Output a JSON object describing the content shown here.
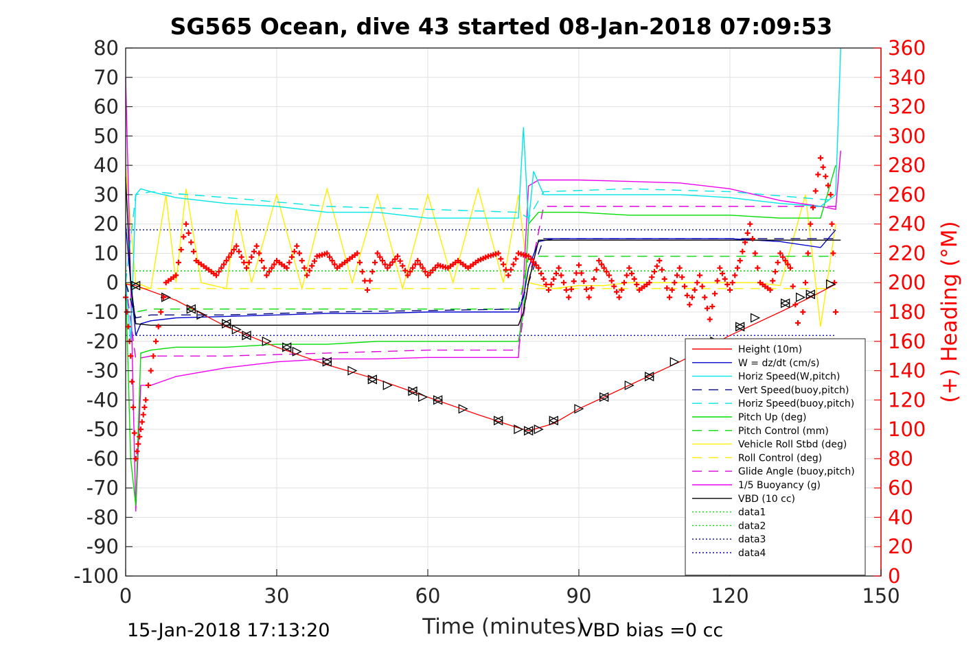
{
  "title": "SG565 Ocean, dive 43 started 08-Jan-2018 07:09:53",
  "footer": {
    "timestamp": "15-Jan-2018 17:13:20",
    "vbd_bias": "VBD bias =0 cc"
  },
  "chart_data": {
    "type": "line",
    "xlabel": "Time (minutes)",
    "ylabel_left": "",
    "ylabel_right": "(+) Heading (°M)",
    "xlim": [
      0,
      150
    ],
    "ylim_left": [
      -100,
      80
    ],
    "ylim_right": [
      0,
      360
    ],
    "xticks": [
      "0",
      "30",
      "60",
      "90",
      "120",
      "150"
    ],
    "yticks_left": [
      "80",
      "70",
      "60",
      "50",
      "40",
      "30",
      "20",
      "10",
      "0",
      "-10",
      "-20",
      "-30",
      "-40",
      "-50",
      "-60",
      "-70",
      "-80",
      "-90",
      "-100"
    ],
    "yticks_right": [
      "360",
      "340",
      "320",
      "300",
      "280",
      "260",
      "240",
      "220",
      "200",
      "180",
      "160",
      "140",
      "120",
      "100",
      "80",
      "60",
      "40",
      "20",
      "0"
    ],
    "grid": true,
    "legend_position": "lower-right",
    "colors": {
      "height": "#ff0000",
      "w": "#0000cd",
      "horiz_w": "#00e5e5",
      "vert_buoy": "#000080",
      "horiz_buoy": "#00e5e5",
      "pitch_up": "#00dd00",
      "pitch_control": "#00dd00",
      "roll": "#ffee00",
      "roll_control": "#ffee00",
      "glide": "#dd00dd",
      "buoyancy": "#ee00ee",
      "vbd": "#000000",
      "heading": "#ff0000"
    },
    "series": [
      {
        "name": "Height (10m)",
        "key": "height",
        "dash": "",
        "x": [
          0,
          2,
          10,
          20,
          30,
          40,
          50,
          60,
          70,
          77,
          80,
          85,
          90,
          95,
          100,
          110,
          120,
          130,
          136,
          141
        ],
        "y": [
          -0.5,
          -1,
          -6,
          -15,
          -22,
          -28,
          -33,
          -39,
          -45,
          -49,
          -50.5,
          -48,
          -43,
          -39,
          -35,
          -27,
          -18,
          -10,
          -5,
          -0.5
        ]
      },
      {
        "name": "W = dz/dt (cm/s)",
        "key": "w",
        "dash": "",
        "x": [
          0,
          1,
          2,
          3,
          5,
          10,
          20,
          30,
          40,
          50,
          60,
          70,
          78,
          79,
          80,
          82,
          85,
          90,
          100,
          110,
          120,
          130,
          138,
          141
        ],
        "y": [
          20,
          0,
          -18,
          -14,
          -13,
          -12,
          -11.5,
          -11,
          -10.5,
          -10.5,
          -10,
          -10,
          -10,
          -5,
          5,
          14,
          15,
          15,
          15,
          15,
          15,
          14,
          12,
          18
        ]
      },
      {
        "name": "Horiz Speed(W,pitch)",
        "key": "horiz_w",
        "dash": "",
        "x": [
          0,
          1,
          2,
          3,
          5,
          10,
          20,
          30,
          40,
          50,
          60,
          70,
          78,
          79,
          80,
          81,
          83,
          90,
          100,
          110,
          120,
          130,
          138,
          141,
          142
        ],
        "y": [
          0,
          -20,
          30,
          32,
          31,
          29,
          27,
          26,
          24,
          24,
          22,
          22,
          22,
          53,
          20,
          38,
          30,
          30,
          30,
          30,
          29,
          27,
          26,
          30,
          80
        ]
      },
      {
        "name": "Vert Speed(buoy,pitch)",
        "key": "vert_buoy",
        "dash": "14,10",
        "x": [
          0,
          2,
          5,
          20,
          40,
          60,
          78,
          80,
          83,
          100,
          120,
          141
        ],
        "y": [
          0,
          -12,
          -11,
          -11,
          -10,
          -9.5,
          -9,
          0,
          15,
          15,
          15,
          15
        ]
      },
      {
        "name": "Horiz Speed(buoy,pitch)",
        "key": "horiz_buoy",
        "dash": "14,10",
        "x": [
          0,
          2,
          5,
          20,
          40,
          60,
          78,
          80,
          83,
          100,
          120,
          141
        ],
        "y": [
          0,
          30,
          31,
          29,
          26,
          25,
          24,
          22,
          31,
          32,
          31,
          28
        ]
      },
      {
        "name": "Pitch Up (deg)",
        "key": "pitch_up",
        "dash": "",
        "x": [
          0,
          1,
          2,
          3,
          5,
          10,
          20,
          30,
          40,
          50,
          60,
          70,
          78,
          79,
          80,
          82,
          90,
          100,
          110,
          120,
          130,
          138,
          141
        ],
        "y": [
          0,
          -60,
          -76,
          -24,
          -23,
          -22,
          -22,
          -21,
          -21,
          -20,
          -20,
          -20,
          -20,
          -10,
          20,
          24,
          24,
          23,
          23,
          23,
          22,
          22,
          40
        ]
      },
      {
        "name": "Pitch Control (mm)",
        "key": "pitch_control",
        "dash": "14,10",
        "x": [
          0,
          2,
          5,
          20,
          40,
          60,
          78,
          80,
          83,
          100,
          120,
          141
        ],
        "y": [
          0,
          -10,
          -9,
          -9,
          -9,
          -9,
          -9,
          9,
          9,
          9,
          9,
          9
        ]
      },
      {
        "name": "Vehicle Roll Stbd (deg)",
        "key": "roll",
        "dash": "",
        "x": [
          0,
          2,
          5,
          8,
          10,
          12,
          15,
          20,
          22,
          25,
          30,
          35,
          40,
          45,
          50,
          55,
          60,
          65,
          70,
          75,
          78,
          80,
          85,
          90,
          95,
          100,
          110,
          120,
          125,
          130,
          135,
          138,
          141
        ],
        "y": [
          40,
          0,
          -2,
          30,
          0,
          32,
          0,
          -2,
          25,
          0,
          30,
          -2,
          32,
          0,
          30,
          -2,
          30,
          0,
          32,
          0,
          30,
          0,
          -2,
          -1,
          -1,
          0,
          0,
          0,
          0,
          -1,
          30,
          -15,
          20
        ]
      },
      {
        "name": "Roll Control (deg)",
        "key": "roll_control",
        "dash": "14,10",
        "x": [
          0,
          2,
          10,
          20,
          30,
          40,
          50,
          60,
          70,
          78,
          80,
          90,
          100,
          110,
          120,
          130,
          141
        ],
        "y": [
          0,
          -2,
          -2,
          -2,
          -2,
          -2,
          -2,
          -2,
          -2,
          -2,
          -2,
          -2,
          -2,
          -2,
          -2,
          -2,
          -2
        ]
      },
      {
        "name": "Glide Angle (buoy,pitch)",
        "key": "glide",
        "dash": "14,10",
        "x": [
          0,
          2,
          5,
          20,
          40,
          60,
          78,
          80,
          83,
          100,
          120,
          141
        ],
        "y": [
          0,
          -26,
          -25,
          -25,
          -24,
          -23,
          -23,
          0,
          26,
          26,
          26,
          26
        ]
      },
      {
        "name": "1/5 Buoyancy (g)",
        "key": "buoyancy",
        "dash": "",
        "x": [
          0,
          1,
          2,
          3,
          5,
          10,
          20,
          30,
          40,
          50,
          60,
          70,
          78,
          79,
          80,
          82,
          90,
          100,
          110,
          120,
          130,
          138,
          141,
          142
        ],
        "y": [
          70,
          0,
          -78,
          -35,
          -35,
          -32,
          -29,
          -27,
          -26,
          -26,
          -25.5,
          -25.5,
          -25.5,
          0,
          33,
          35,
          35,
          34.5,
          34,
          32,
          28,
          26,
          25,
          45
        ]
      },
      {
        "name": "VBD (10 cc)",
        "key": "vbd",
        "dash": "",
        "x": [
          0,
          1,
          2,
          5,
          10,
          20,
          40,
          60,
          78,
          79,
          80,
          82,
          90,
          100,
          120,
          135,
          141,
          142
        ],
        "y": [
          36,
          0,
          -14,
          -14.5,
          -14.5,
          -14.5,
          -14.5,
          -14.5,
          -14.5,
          -10,
          0,
          14.5,
          14.5,
          14.5,
          14.5,
          14.5,
          14.5,
          14.5
        ]
      },
      {
        "name": "data1",
        "key": "data1",
        "dash": "2,3",
        "x": [
          0,
          141
        ],
        "y": [
          4,
          4
        ]
      },
      {
        "name": "data2",
        "key": "data2",
        "dash": "2,3",
        "x": [
          0,
          141
        ],
        "y": [
          4,
          4
        ]
      },
      {
        "name": "data3",
        "key": "data3",
        "dash": "2,3",
        "x": [
          0,
          141
        ],
        "y": [
          18,
          18
        ]
      },
      {
        "name": "data4",
        "key": "data4",
        "dash": "2,3",
        "x": [
          0,
          141
        ],
        "y": [
          -18,
          -18
        ]
      }
    ],
    "data_line_colors": {
      "data1": "#00dd00",
      "data2": "#00dd00",
      "data3": "#000080",
      "data4": "#0000cd"
    },
    "heading": {
      "axis": "right",
      "marker": "+",
      "x": [
        0,
        1,
        2,
        3,
        4,
        6,
        8,
        10,
        12,
        14,
        16,
        18,
        20,
        22,
        24,
        26,
        28,
        30,
        32,
        34,
        36,
        38,
        40,
        42,
        44,
        46,
        48,
        50,
        52,
        54,
        56,
        58,
        60,
        62,
        64,
        66,
        68,
        70,
        72,
        74,
        76,
        78,
        80,
        82,
        84,
        86,
        88,
        90,
        92,
        94,
        96,
        98,
        100,
        102,
        104,
        106,
        108,
        110,
        112,
        114,
        116,
        118,
        120,
        122,
        124,
        126,
        128,
        130,
        132,
        134,
        136,
        138,
        140,
        141
      ],
      "y": [
        190,
        150,
        80,
        100,
        120,
        160,
        200,
        205,
        240,
        215,
        210,
        205,
        215,
        225,
        210,
        225,
        205,
        215,
        210,
        225,
        205,
        218,
        220,
        210,
        215,
        220,
        195,
        220,
        210,
        218,
        205,
        215,
        205,
        212,
        210,
        215,
        210,
        215,
        218,
        220,
        205,
        220,
        218,
        210,
        195,
        210,
        190,
        212,
        190,
        215,
        205,
        190,
        210,
        195,
        200,
        215,
        190,
        210,
        185,
        205,
        175,
        210,
        195,
        215,
        240,
        200,
        195,
        220,
        210,
        160,
        240,
        285,
        260,
        180
      ]
    },
    "height_markers": {
      "x": [
        2,
        8,
        13,
        15,
        20,
        22,
        24,
        28,
        32,
        34,
        40,
        45,
        49,
        52,
        57,
        59,
        62,
        67,
        74,
        78,
        80,
        82,
        85,
        90,
        95,
        100,
        104,
        109,
        113,
        117,
        122,
        125,
        131,
        134,
        136,
        140
      ],
      "y": [
        -1,
        -5,
        -9,
        -11,
        -14,
        -16,
        -18,
        -20,
        -22,
        -23.5,
        -27,
        -30,
        -33,
        -35,
        -37,
        -39,
        -40,
        -43,
        -47,
        -50,
        -50.5,
        -50,
        -47,
        -43,
        -39,
        -35,
        -32,
        -27,
        -23,
        -20,
        -15,
        -12,
        -7,
        -5,
        -4,
        -0.5
      ]
    }
  }
}
